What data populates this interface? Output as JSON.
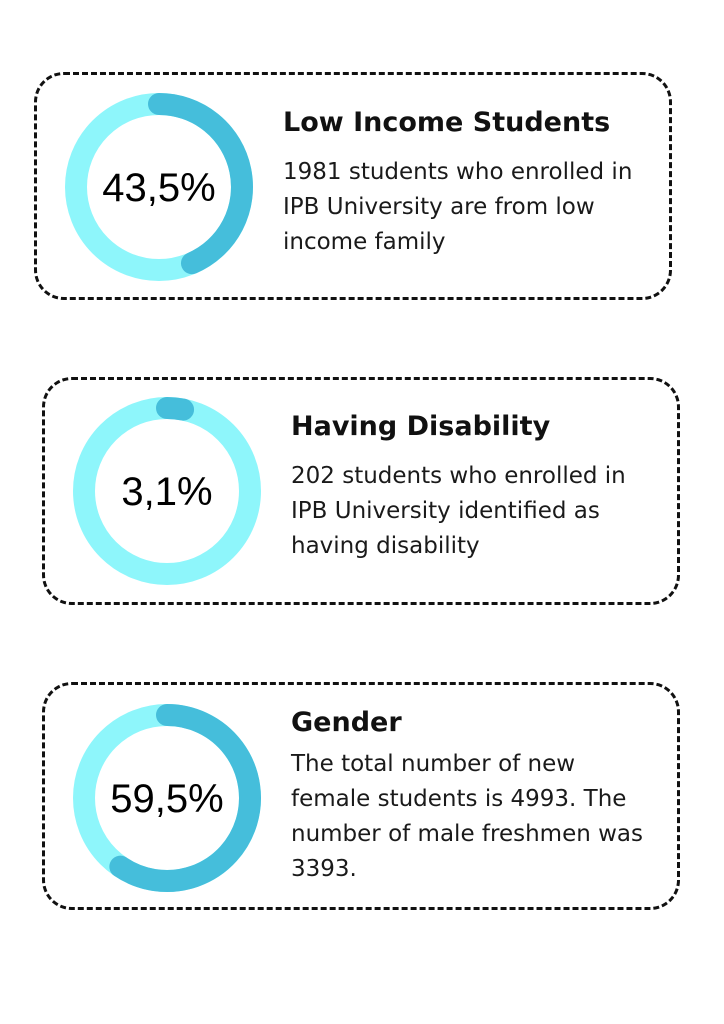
{
  "colors": {
    "track": "#8ef6fb",
    "arc": "#45bedb",
    "border": "#111111",
    "text": "#111111"
  },
  "chart_data": [
    {
      "type": "pie",
      "title": "Low Income Students",
      "values": [
        43.5
      ],
      "value_label": "43,5%",
      "description": "1981 students who enrolled in IPB University are from low income family"
    },
    {
      "type": "pie",
      "title": "Having Disability",
      "values": [
        3.1
      ],
      "value_label": "3,1%",
      "description": "202 students who enrolled in IPB University identified as having disability"
    },
    {
      "type": "pie",
      "title": "Gender",
      "values": [
        59.5
      ],
      "value_label": "59,5%",
      "description": "The total number of new female students is 4993. The number of male freshmen was 3393."
    }
  ]
}
